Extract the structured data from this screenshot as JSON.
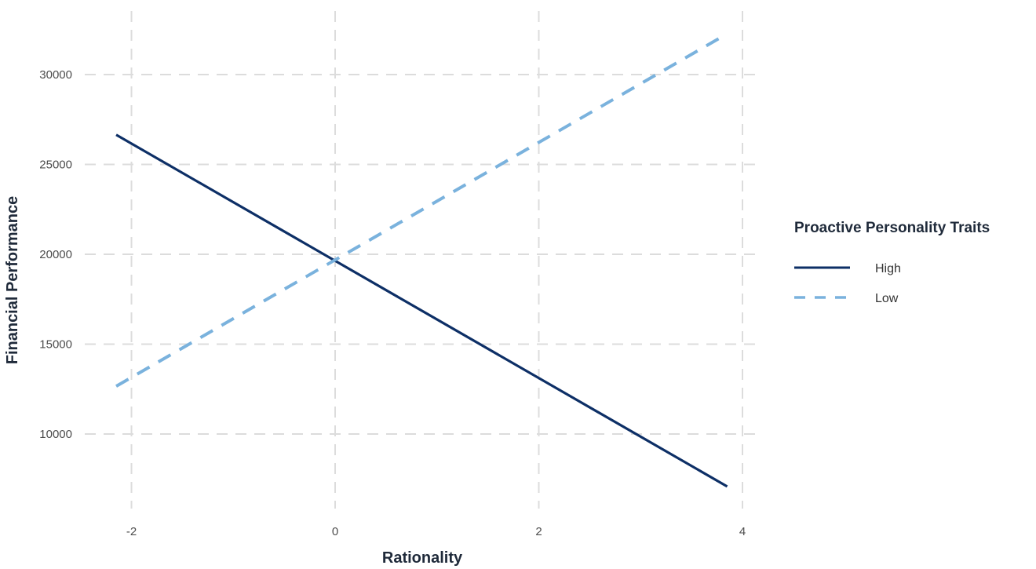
{
  "chart_data": {
    "type": "line",
    "title": "",
    "xlabel": "Rationality",
    "ylabel": "Financial Performance",
    "x_ticks": [
      -2,
      0,
      2,
      4
    ],
    "y_ticks": [
      10000,
      15000,
      20000,
      25000,
      30000
    ],
    "x_tick_labels": [
      "-2",
      "0",
      "2",
      "4"
    ],
    "y_tick_labels": [
      "10000",
      "15000",
      "20000",
      "25000",
      "30000"
    ],
    "xlim": [
      -2.45,
      4.3
    ],
    "ylim": [
      5900,
      33600
    ],
    "grid": true,
    "grid_style": "dashed",
    "legend": {
      "title": "Proactive Personality Traits",
      "position": "right",
      "entries": [
        "High",
        "Low"
      ]
    },
    "series": [
      {
        "name": "High",
        "color": "#0d2f66",
        "dash": "solid",
        "x": [
          -2.15,
          3.85
        ],
        "y": [
          26650,
          7080
        ]
      },
      {
        "name": "Low",
        "color": "#7ab2dd",
        "dash": "dashed",
        "x": [
          -2.15,
          3.85
        ],
        "y": [
          12660,
          32270
        ]
      }
    ]
  },
  "colors": {
    "high": "#0d2f66",
    "low": "#7ab2dd",
    "grid": "#dcdcdc"
  }
}
